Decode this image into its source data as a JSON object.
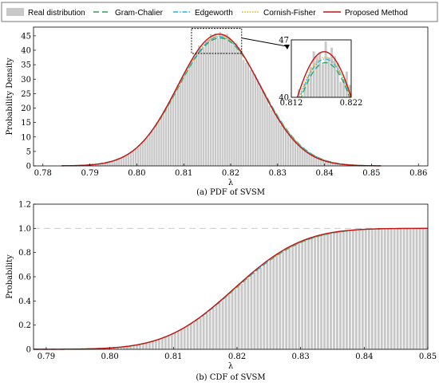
{
  "colors": {
    "real": "#c8c8c8",
    "gram_charlier": "#2e9e58",
    "edgeworth": "#1eb4e6",
    "cornish_fisher": "#e6b422",
    "proposed": "#c41414"
  },
  "legend": {
    "placement": "top",
    "items": [
      {
        "key": "real",
        "label": "Real distribution",
        "style": "box"
      },
      {
        "key": "gram_charlier",
        "label": "Gram-Chalier",
        "style": "dash"
      },
      {
        "key": "edgeworth",
        "label": "Edgeworth",
        "style": "dashdot"
      },
      {
        "key": "cornish_fisher",
        "label": "Cornish-Fisher",
        "style": "dot"
      },
      {
        "key": "proposed",
        "label": "Proposed Method",
        "style": "solid"
      }
    ]
  },
  "chart_data": [
    {
      "id": "pdf",
      "type": "bar",
      "title": "",
      "caption": "(a) PDF of SVSM",
      "xlabel": "λ",
      "ylabel": "Probability Density",
      "xlim": [
        0.778,
        0.862
      ],
      "ylim": [
        0,
        48
      ],
      "xticks": [
        0.78,
        0.79,
        0.8,
        0.81,
        0.82,
        0.83,
        0.84,
        0.85,
        0.86
      ],
      "xtick_labels": [
        "0.78",
        "0.79",
        "0.80",
        "0.81",
        "0.82",
        "0.83",
        "0.84",
        "0.85",
        "0.86"
      ],
      "yticks": [
        0,
        5,
        10,
        15,
        20,
        25,
        30,
        35,
        40,
        45
      ],
      "ytick_labels": [
        "0",
        "5",
        "10",
        "15",
        "20",
        "25",
        "30",
        "35",
        "40",
        "45"
      ],
      "grid": false,
      "distribution": {
        "mean": 0.8175,
        "sd": 0.0088
      },
      "histogram": {
        "start": 0.786,
        "end": 0.851,
        "bin_width": 0.0005
      },
      "zoom_box": {
        "x": [
          0.812,
          0.822
        ],
        "y": [
          40,
          47
        ],
        "xtick_labels": [
          "0.812",
          "0.822"
        ],
        "ytick_labels": [
          "40",
          "47"
        ]
      }
    },
    {
      "id": "cdf",
      "type": "bar",
      "title": "",
      "caption": "(b) CDF of SVSM",
      "xlabel": "λ",
      "ylabel": "Probability",
      "xlim": [
        0.788,
        0.85
      ],
      "ylim": [
        0,
        1.2
      ],
      "xticks": [
        0.79,
        0.8,
        0.81,
        0.82,
        0.83,
        0.84,
        0.85
      ],
      "xtick_labels": [
        "0.79",
        "0.80",
        "0.81",
        "0.82",
        "0.83",
        "0.84",
        "0.85"
      ],
      "yticks": [
        0,
        0.2,
        0.4,
        0.6,
        0.8,
        1.0,
        1.2
      ],
      "ytick_labels": [
        "0",
        "0.2",
        "0.4",
        "0.6",
        "0.8",
        "1.0",
        "1.2"
      ],
      "reference_line": 1.0,
      "grid": false,
      "distribution": {
        "mean": 0.8195,
        "sd": 0.0085
      },
      "histogram": {
        "start": 0.788,
        "end": 0.85,
        "bin_width": 0.0005
      }
    }
  ]
}
